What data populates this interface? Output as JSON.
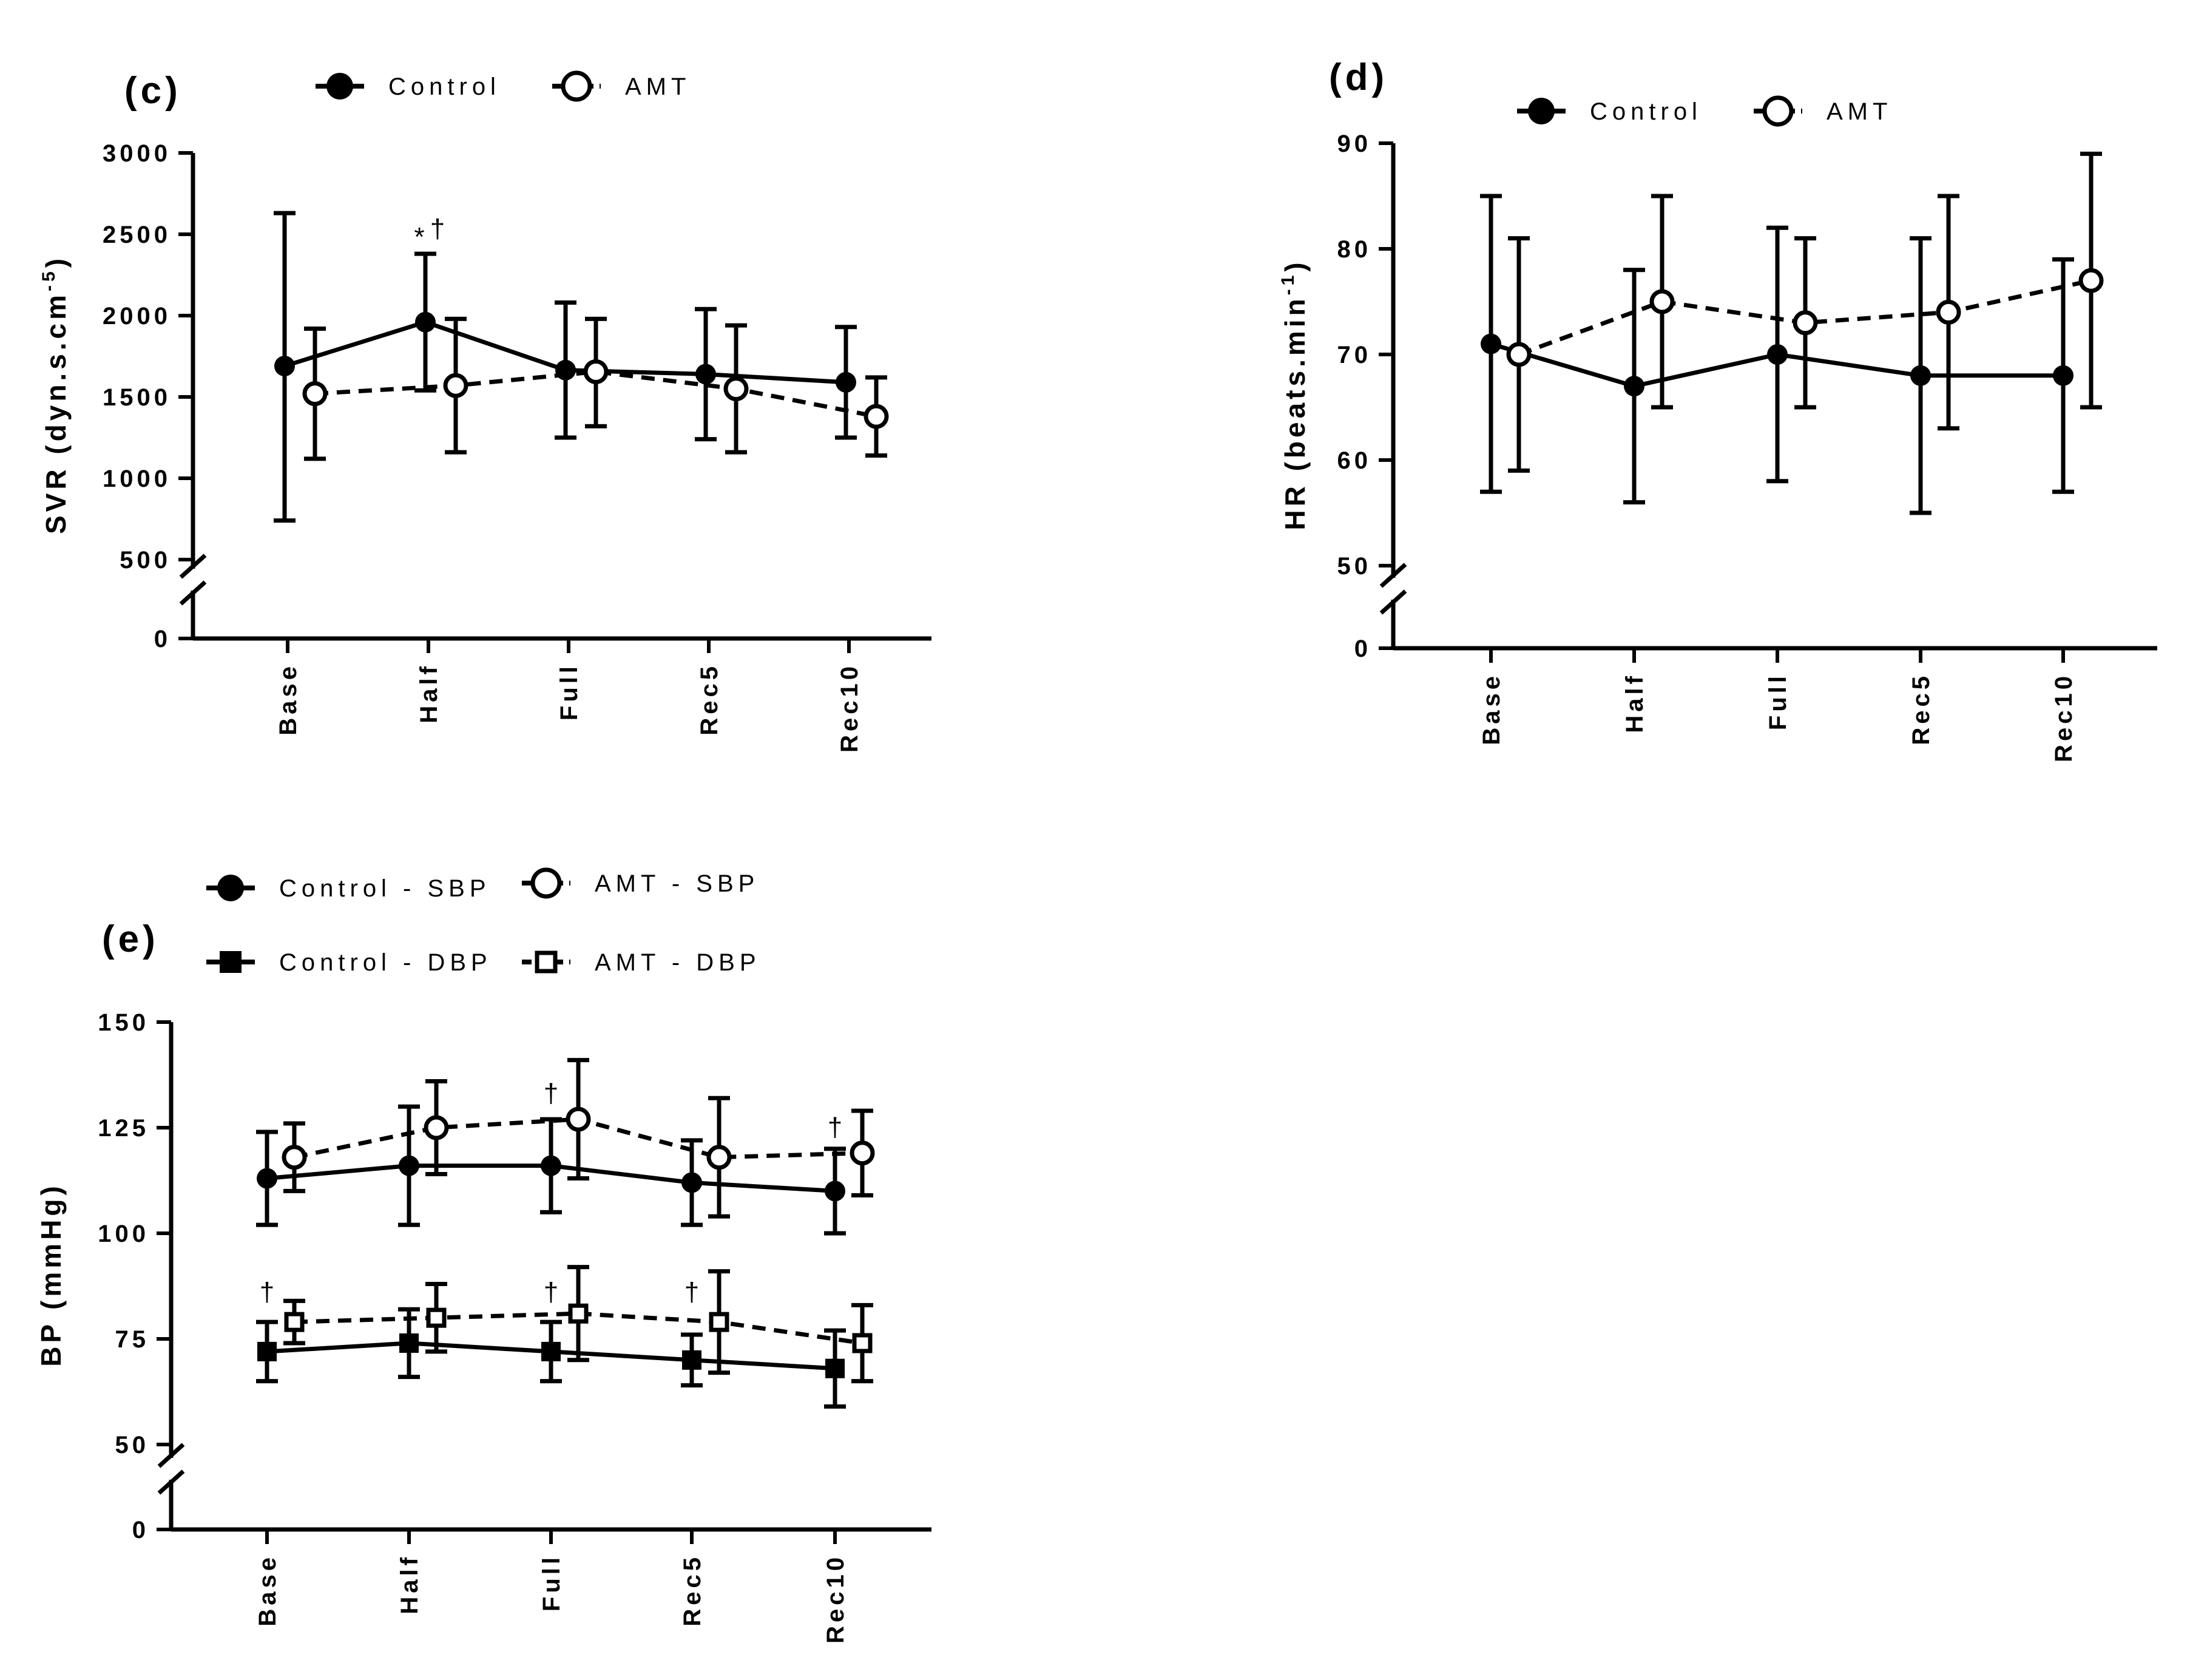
{
  "chart_data": [
    {
      "type": "line",
      "panel_label": "(c)",
      "ylabel": "SVR (dyn.s.cm",
      "ylabel_superscript": "-5",
      "ylabel_close": ")",
      "categories": [
        "Base",
        "Half",
        "Full",
        "Rec5",
        "Rec10"
      ],
      "ylim": [
        500,
        3000
      ],
      "yticks": [
        500,
        1000,
        1500,
        2000,
        2500,
        3000
      ],
      "zero_tick": "0",
      "axis_break": true,
      "legend": {
        "position": "top",
        "entries": [
          "Control",
          "AMT"
        ]
      },
      "series": [
        {
          "name": "Control",
          "marker": "filled-circle",
          "line": "solid",
          "values": [
            1690,
            1960,
            1665,
            1640,
            1590
          ],
          "err_upper": [
            2630,
            2380,
            2080,
            2040,
            1930
          ],
          "err_lower": [
            740,
            1540,
            1250,
            1240,
            1250
          ]
        },
        {
          "name": "AMT",
          "marker": "open-circle",
          "line": "dashed",
          "values": [
            1520,
            1570,
            1655,
            1550,
            1380
          ],
          "err_upper": [
            1920,
            1980,
            1980,
            1940,
            1620
          ],
          "err_lower": [
            1120,
            1160,
            1320,
            1160,
            1140
          ]
        }
      ],
      "annotations": [
        {
          "text": "*",
          "category": "Half",
          "y": 2430,
          "offset": -15
        },
        {
          "text": "†",
          "category": "Half",
          "y": 2480,
          "offset": 15
        }
      ]
    },
    {
      "type": "line",
      "panel_label": "(d)",
      "ylabel": "HR (beats.min",
      "ylabel_superscript": "-1",
      "ylabel_close": ")",
      "categories": [
        "Base",
        "Half",
        "Full",
        "Rec5",
        "Rec10"
      ],
      "ylim": [
        50,
        90
      ],
      "yticks": [
        50,
        60,
        70,
        80,
        90
      ],
      "zero_tick": "0",
      "axis_break": true,
      "legend": {
        "position": "top",
        "entries": [
          "Control",
          "AMT"
        ]
      },
      "series": [
        {
          "name": "Control",
          "marker": "filled-circle",
          "line": "solid",
          "values": [
            71,
            67,
            70,
            68,
            68
          ],
          "err_upper": [
            85,
            78,
            82,
            81,
            79
          ],
          "err_lower": [
            57,
            56,
            58,
            55,
            57
          ]
        },
        {
          "name": "AMT",
          "marker": "open-circle",
          "line": "dashed",
          "values": [
            70,
            75,
            73,
            74,
            77
          ],
          "err_upper": [
            81,
            85,
            81,
            85,
            89
          ],
          "err_lower": [
            59,
            65,
            65,
            63,
            65
          ]
        }
      ],
      "annotations": []
    },
    {
      "type": "line",
      "panel_label": "(e)",
      "ylabel": "BP (mmHg)",
      "categories": [
        "Base",
        "Half",
        "Full",
        "Rec5",
        "Rec10"
      ],
      "ylim": [
        50,
        150
      ],
      "yticks": [
        50,
        75,
        100,
        125,
        150
      ],
      "zero_tick": "0",
      "axis_break": true,
      "legend": {
        "position": "top",
        "entries": [
          "Control - SBP",
          "AMT - SBP",
          "Control - DBP",
          "AMT - DBP"
        ]
      },
      "series": [
        {
          "name": "Control - SBP",
          "marker": "filled-circle",
          "line": "solid",
          "values": [
            113,
            116,
            116,
            112,
            110
          ],
          "err_upper": [
            124,
            130,
            127,
            122,
            120
          ],
          "err_lower": [
            102,
            102,
            105,
            102,
            100
          ]
        },
        {
          "name": "AMT - SBP",
          "marker": "open-circle",
          "line": "dashed",
          "values": [
            118,
            125,
            127,
            118,
            119
          ],
          "err_upper": [
            126,
            136,
            141,
            132,
            129
          ],
          "err_lower": [
            110,
            114,
            113,
            104,
            109
          ]
        },
        {
          "name": "Control - DBP",
          "marker": "filled-square",
          "line": "solid",
          "values": [
            72,
            74,
            72,
            70,
            68
          ],
          "err_upper": [
            79,
            82,
            79,
            76,
            77
          ],
          "err_lower": [
            65,
            66,
            65,
            64,
            59
          ]
        },
        {
          "name": "AMT - DBP",
          "marker": "open-square",
          "line": "dashed",
          "values": [
            79,
            80,
            81,
            79,
            74
          ],
          "err_upper": [
            84,
            88,
            92,
            91,
            83
          ],
          "err_lower": [
            74,
            72,
            70,
            67,
            65
          ]
        }
      ],
      "annotations": [
        {
          "text": "†",
          "category": "Full",
          "y": 131,
          "offset": 0
        },
        {
          "text": "†",
          "category": "Rec10",
          "y": 123,
          "offset": 0
        },
        {
          "text": "†",
          "category": "Base",
          "y": 84,
          "offset": 0
        },
        {
          "text": "†",
          "category": "Full",
          "y": 84,
          "offset": 0
        },
        {
          "text": "†",
          "category": "Rec5",
          "y": 84,
          "offset": 0
        }
      ]
    }
  ]
}
